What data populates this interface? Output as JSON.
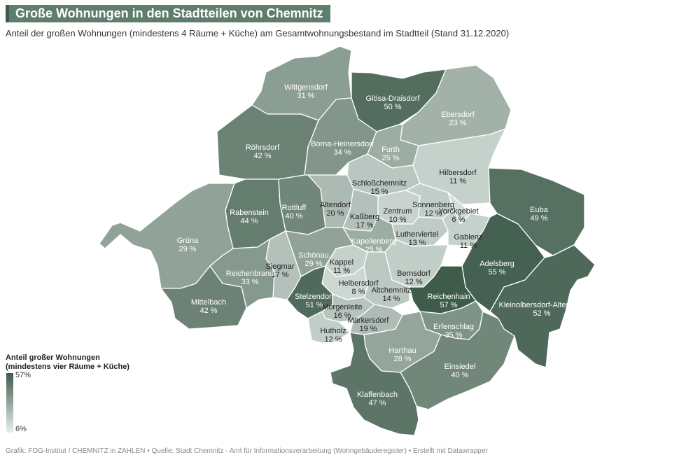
{
  "title": "Große Wohnungen in den Stadtteilen von Chemnitz",
  "subtitle": "Anteil der großen Wohnungen (mindestens 4 Räume + Küche) am Gesamtwohnungsbestand im Stadtteil (Stand 31.12.2020)",
  "legend": {
    "title_line1": "Anteil großer Wohnungen",
    "title_line2": "(mindestens vier Räume + Küche)",
    "max_label": "57%",
    "min_label": "6%",
    "color_high": "#3f5c4b",
    "color_low": "#e8efec"
  },
  "footer": "Grafik: FOG-Institut / CHEMNITZ in ZAHLEN • Quelle: Stadt Chemnitz - Amt für Informationsverarbeitung (Wohngebäuderegister) • Erstellt mit Datawrapper",
  "districts": [
    {
      "id": "wittgensdorf",
      "name": "Wittgensdorf",
      "value_label": "31 %",
      "value": 31
    },
    {
      "id": "gloesa-draisdorf",
      "name": "Glösa-Draisdorf",
      "value_label": "50 %",
      "value": 50
    },
    {
      "id": "ebersdorf",
      "name": "Ebersdorf",
      "value_label": "23 %",
      "value": 23
    },
    {
      "id": "roehrsdorf",
      "name": "Röhrsdorf",
      "value_label": "42 %",
      "value": 42
    },
    {
      "id": "borna-heinersdorf",
      "name": "Borna-Heinersdorf",
      "value_label": "34 %",
      "value": 34
    },
    {
      "id": "furth",
      "name": "Furth",
      "value_label": "25 %",
      "value": 25
    },
    {
      "id": "hilbersdorf",
      "name": "Hilbersdorf",
      "value_label": "11 %",
      "value": 11
    },
    {
      "id": "schlosschemnitz",
      "name": "Schloßchemnitz",
      "value_label": "15 %",
      "value": 15
    },
    {
      "id": "euba",
      "name": "Euba",
      "value_label": "49 %",
      "value": 49
    },
    {
      "id": "rabenstein",
      "name": "Rabenstein",
      "value_label": "44 %",
      "value": 44
    },
    {
      "id": "rottluff",
      "name": "Rottluff",
      "value_label": "40 %",
      "value": 40
    },
    {
      "id": "altendorf",
      "name": "Altendorf",
      "value_label": "20 %",
      "value": 20
    },
    {
      "id": "zentrum",
      "name": "Zentrum",
      "value_label": "10 %",
      "value": 10
    },
    {
      "id": "sonnenberg",
      "name": "Sonnenberg",
      "value_label": "12 %",
      "value": 12
    },
    {
      "id": "yorckgebiet",
      "name": "Yorckgebiet",
      "value_label": "6 %",
      "value": 6
    },
    {
      "id": "kassberg",
      "name": "Kaßberg",
      "value_label": "17 %",
      "value": 17
    },
    {
      "id": "gruena",
      "name": "Grüna",
      "value_label": "29 %",
      "value": 29
    },
    {
      "id": "lutherviertel",
      "name": "Lutherviertel",
      "value_label": "13 %",
      "value": 13
    },
    {
      "id": "gablenz",
      "name": "Gablenz",
      "value_label": "11 %",
      "value": 11
    },
    {
      "id": "kapellenberg",
      "name": "Kapellenberg",
      "value_label": "25 %",
      "value": 25
    },
    {
      "id": "schoenau",
      "name": "Schönau",
      "value_label": "29 %",
      "value": 29
    },
    {
      "id": "kappel",
      "name": "Kappel",
      "value_label": "11 %",
      "value": 11
    },
    {
      "id": "adelsberg",
      "name": "Adelsberg",
      "value_label": "55 %",
      "value": 55
    },
    {
      "id": "siegmar",
      "name": "Siegmar",
      "value_label": "17 %",
      "value": 17
    },
    {
      "id": "reichenbrand",
      "name": "Reichenbrand",
      "value_label": "33 %",
      "value": 33
    },
    {
      "id": "bernsdorf",
      "name": "Bernsdorf",
      "value_label": "12 %",
      "value": 12
    },
    {
      "id": "helbersdorf",
      "name": "Helbersdorf",
      "value_label": "8 %",
      "value": 8
    },
    {
      "id": "altchemnitz",
      "name": "Altchemnitz",
      "value_label": "14 %",
      "value": 14
    },
    {
      "id": "reichenhain",
      "name": "Reichenhain",
      "value_label": "57 %",
      "value": 57
    },
    {
      "id": "mittelbach",
      "name": "Mittelbach",
      "value_label": "42 %",
      "value": 42
    },
    {
      "id": "stelzendorf",
      "name": "Stelzendorf",
      "value_label": "51 %",
      "value": 51
    },
    {
      "id": "kleinolbersdorf-altenhain",
      "name": "Kleinolbersdorf-Altenhain",
      "value_label": "52 %",
      "value": 52
    },
    {
      "id": "morgenleite",
      "name": "Morgenleite",
      "value_label": "16 %",
      "value": 16
    },
    {
      "id": "markersdorf",
      "name": "Markersdorf",
      "value_label": "19 %",
      "value": 19
    },
    {
      "id": "erfenschlag",
      "name": "Erfenschlag",
      "value_label": "35 %",
      "value": 35
    },
    {
      "id": "hutholz",
      "name": "Hutholz",
      "value_label": "12 %",
      "value": 12
    },
    {
      "id": "harthau",
      "name": "Harthau",
      "value_label": "28 %",
      "value": 28
    },
    {
      "id": "einsiedel",
      "name": "Einsiedel",
      "value_label": "40 %",
      "value": 40
    },
    {
      "id": "klaffenbach",
      "name": "Klaffenbach",
      "value_label": "47 %",
      "value": 47
    }
  ]
}
